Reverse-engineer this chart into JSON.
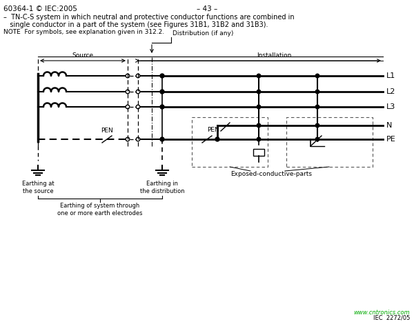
{
  "title_left": "60364-1 © IEC:2005",
  "title_center": "– 43 –",
  "desc_line1": "–  TN-C-S system in which neutral and protective conductor functions are combined in",
  "desc_line2": "   single conductor in a part of the system (see Figures 31B1, 31B2 and 31B3).",
  "note": "NOTE  For symbols, see explanation given in 312.2.",
  "label_distribution": "Distribution (if any)",
  "label_source": "Source",
  "label_installation": "Installation",
  "label_L1": "L1",
  "label_L2": "L2",
  "label_L3": "L3",
  "label_N": "N",
  "label_PE": "PE",
  "label_PEN1": "PEN",
  "label_PEN2": "PEN",
  "label_earthing_source": "Earthing at\nthe source",
  "label_earthing_dist": "Earthing in\nthe distribution",
  "label_earthing_system": "Earthing of system through\none or more earth electrodes",
  "label_exposed": "Exposed-conductive-parts",
  "label_website": "www.cntronics.com",
  "label_iec": "IEC  2272/05",
  "bg_color": "#ffffff",
  "line_color": "#000000",
  "text_color": "#000000",
  "green_color": "#00aa00"
}
